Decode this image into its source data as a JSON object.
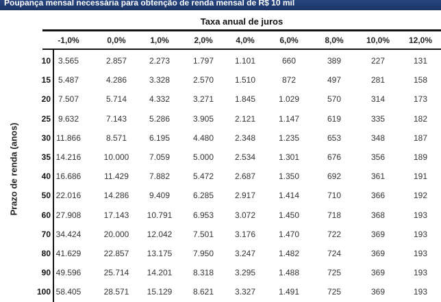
{
  "title": "Poupança mensal necessária para obtenção de renda mensal de R$ 10 mil",
  "column_group_label": "Taxa anual de juros",
  "row_group_label": "Prazo de renda (anos)",
  "colors": {
    "title_bar": "#1c3466",
    "title_text": "#ffffff"
  },
  "chart_data": {
    "type": "table",
    "title": "Poupança mensal necessária para obtenção de renda mensal de R$ 10 mil",
    "columns": [
      "-1,0%",
      "0,0%",
      "1,0%",
      "2,0%",
      "4,0%",
      "6,0%",
      "8,0%",
      "10,0%",
      "12,0%"
    ],
    "rows": [
      {
        "label": "10",
        "values": [
          "3.565",
          "2.857",
          "2.273",
          "1.797",
          "1.101",
          "660",
          "389",
          "227",
          "131"
        ]
      },
      {
        "label": "15",
        "values": [
          "5.487",
          "4.286",
          "3.328",
          "2.570",
          "1.510",
          "872",
          "497",
          "281",
          "158"
        ]
      },
      {
        "label": "20",
        "values": [
          "7.507",
          "5.714",
          "4.332",
          "3.271",
          "1.845",
          "1.029",
          "570",
          "314",
          "173"
        ]
      },
      {
        "label": "25",
        "values": [
          "9.632",
          "7.143",
          "5.286",
          "3.905",
          "2.121",
          "1.147",
          "619",
          "335",
          "182"
        ]
      },
      {
        "label": "30",
        "values": [
          "11.866",
          "8.571",
          "6.195",
          "4.480",
          "2.348",
          "1.235",
          "653",
          "348",
          "187"
        ]
      },
      {
        "label": "35",
        "values": [
          "14.216",
          "10.000",
          "7.059",
          "5.000",
          "2.534",
          "1.301",
          "676",
          "356",
          "189"
        ]
      },
      {
        "label": "40",
        "values": [
          "16.686",
          "11.429",
          "7.882",
          "5.472",
          "2.687",
          "1.350",
          "692",
          "361",
          "191"
        ]
      },
      {
        "label": "50",
        "values": [
          "22.016",
          "14.286",
          "9.409",
          "6.285",
          "2.917",
          "1.414",
          "710",
          "366",
          "192"
        ]
      },
      {
        "label": "60",
        "values": [
          "27.908",
          "17.143",
          "10.791",
          "6.953",
          "3.072",
          "1.450",
          "718",
          "368",
          "193"
        ]
      },
      {
        "label": "70",
        "values": [
          "34.424",
          "20.000",
          "12.042",
          "7.501",
          "3.176",
          "1.470",
          "722",
          "369",
          "193"
        ]
      },
      {
        "label": "80",
        "values": [
          "41.629",
          "22.857",
          "13.175",
          "7.950",
          "3.247",
          "1.482",
          "724",
          "369",
          "193"
        ]
      },
      {
        "label": "90",
        "values": [
          "49.596",
          "25.714",
          "14.201",
          "8.318",
          "3.295",
          "1.488",
          "725",
          "369",
          "193"
        ]
      },
      {
        "label": "100",
        "values": [
          "58.405",
          "28.571",
          "15.129",
          "8.621",
          "3.327",
          "1.491",
          "725",
          "369",
          "193"
        ]
      }
    ]
  }
}
